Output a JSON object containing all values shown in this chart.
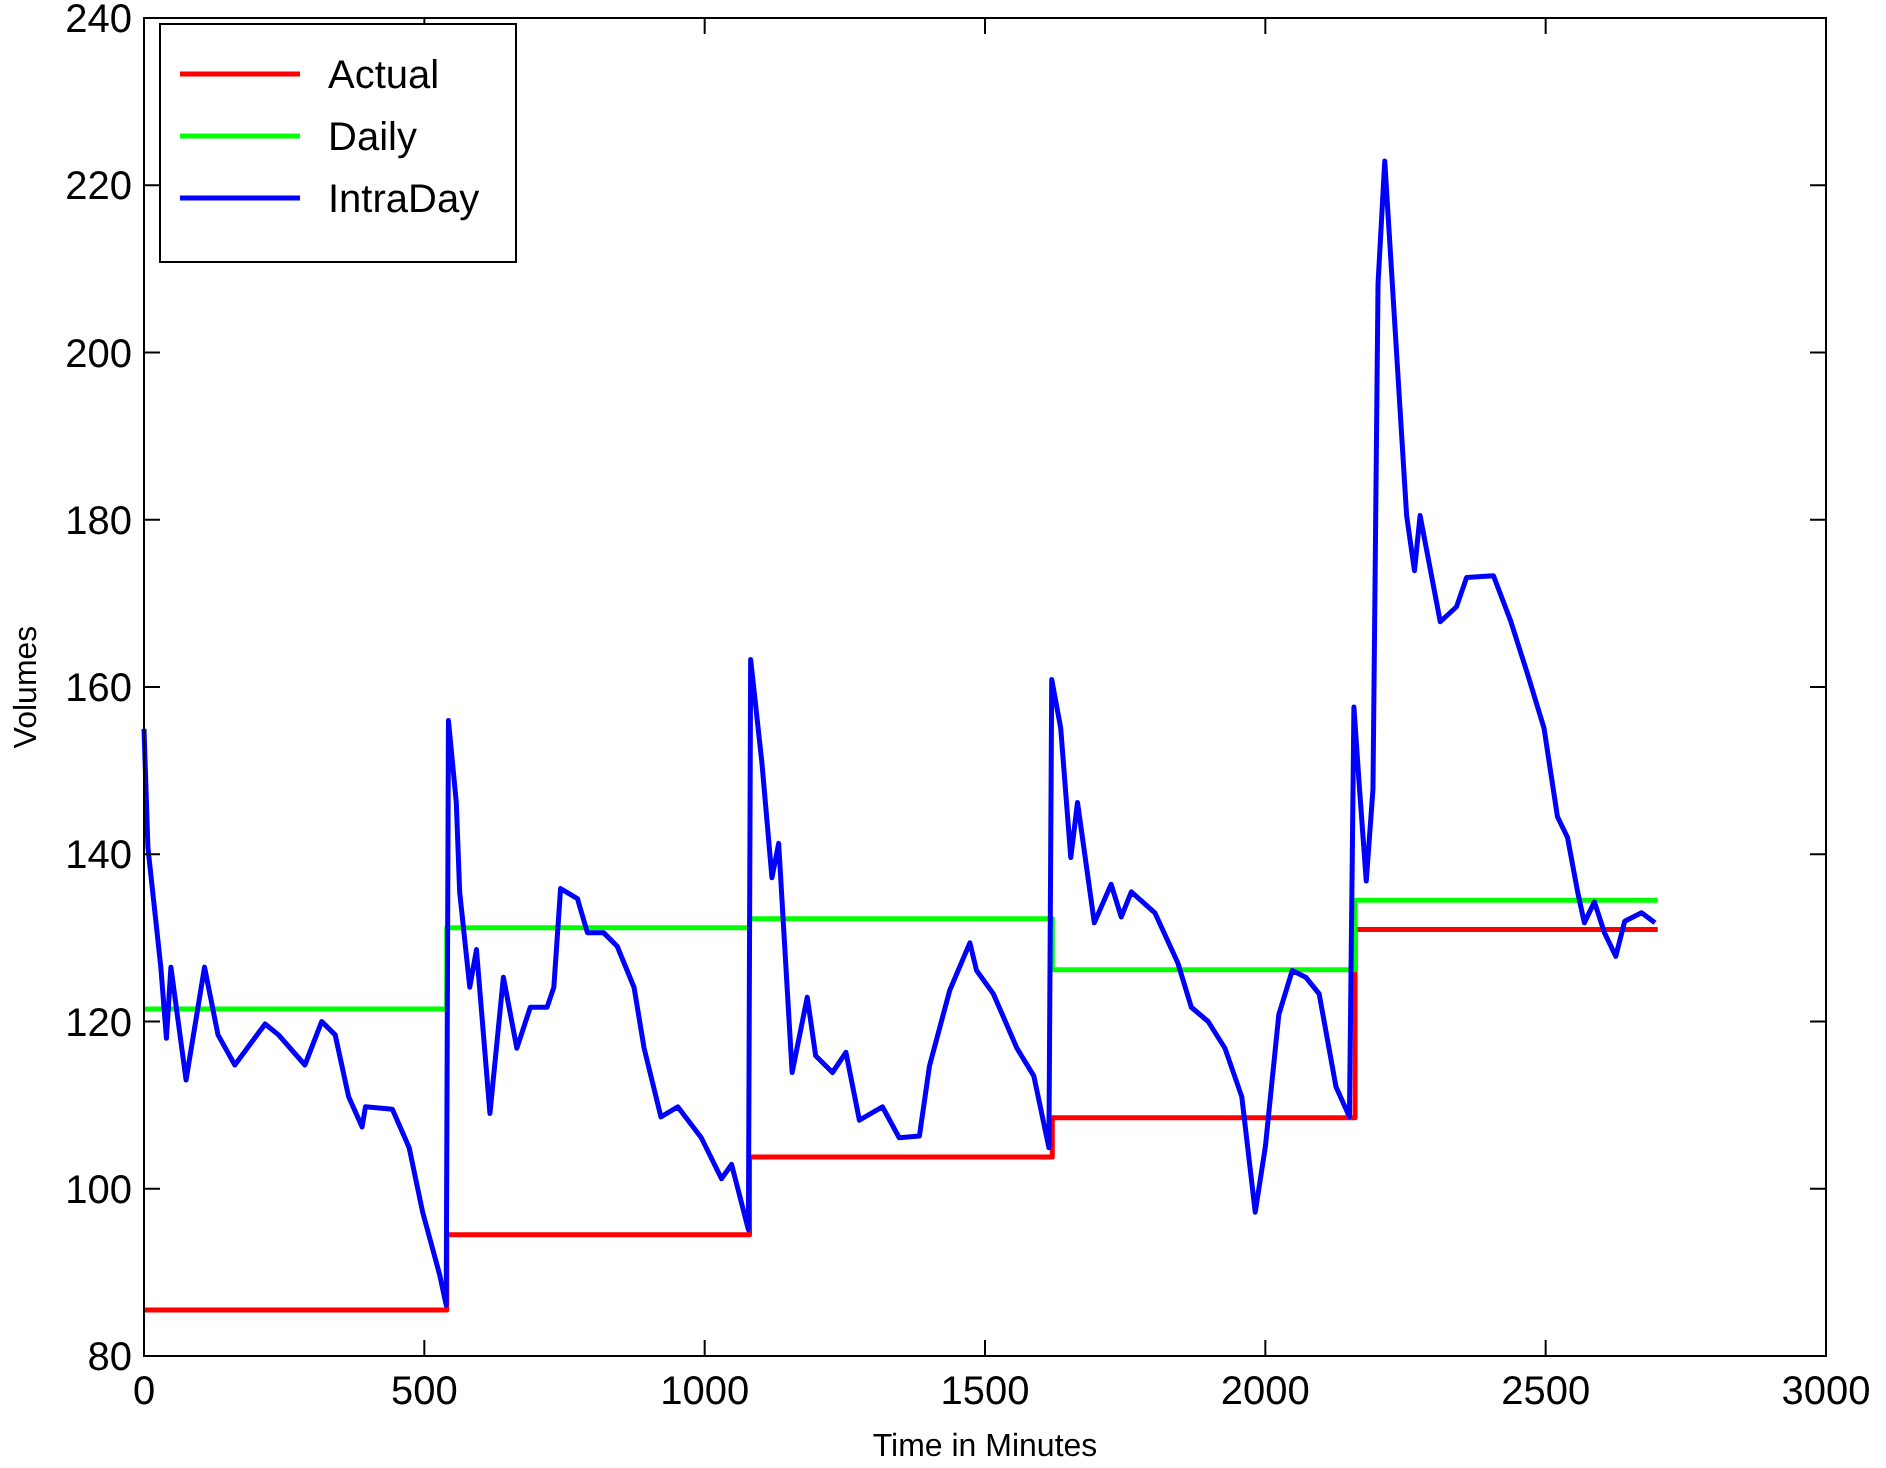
{
  "chart_data": {
    "type": "line",
    "xlabel": "Time in Minutes",
    "ylabel": "Volumes",
    "xlim": [
      0,
      3000
    ],
    "ylim": [
      80,
      240
    ],
    "xticks": [
      0,
      500,
      1000,
      1500,
      2000,
      2500,
      3000
    ],
    "yticks": [
      80,
      100,
      120,
      140,
      160,
      180,
      200,
      220,
      240
    ],
    "legend": "top left",
    "grid": false,
    "series": [
      {
        "name": "Actual",
        "type": "step",
        "color": "#ff0000",
        "x": [
          0,
          540,
          1080,
          1620,
          2160,
          2700
        ],
        "values": [
          85.5,
          94.5,
          103.8,
          108.5,
          131,
          131
        ]
      },
      {
        "name": "Daily",
        "type": "step",
        "color": "#00ff00",
        "x": [
          0,
          540,
          1080,
          1620,
          2160,
          2700
        ],
        "values": [
          121.5,
          131.2,
          132.3,
          126.2,
          134.5,
          134.5
        ]
      },
      {
        "name": "IntraDay",
        "type": "line",
        "color": "#0000ff",
        "x": [
          0,
          7,
          30,
          40,
          48,
          75,
          108,
          132,
          162,
          216,
          240,
          287,
          317,
          341,
          365,
          389,
          395,
          443,
          473,
          497,
          527,
          539,
          543,
          557,
          563,
          581,
          593,
          617,
          641,
          665,
          689,
          719,
          731,
          743,
          773,
          791,
          820,
          844,
          874,
          892,
          922,
          952,
          994,
          1030,
          1048,
          1078,
          1082,
          1102,
          1120,
          1132,
          1156,
          1183,
          1198,
          1228,
          1252,
          1276,
          1317,
          1347,
          1383,
          1401,
          1437,
          1473,
          1485,
          1515,
          1557,
          1587,
          1614,
          1619,
          1635,
          1653,
          1665,
          1695,
          1725,
          1743,
          1761,
          1803,
          1844,
          1868,
          1898,
          1928,
          1958,
          1982,
          2000,
          2024,
          2048,
          2072,
          2096,
          2126,
          2150,
          2158,
          2168,
          2180,
          2192,
          2201,
          2213,
          2222,
          2240,
          2252,
          2266,
          2276,
          2312,
          2341,
          2359,
          2407,
          2437,
          2467,
          2497,
          2521,
          2539,
          2557,
          2569,
          2587,
          2605,
          2625,
          2641,
          2671,
          2695
        ],
        "values": [
          155,
          140.8,
          126.5,
          118,
          126.5,
          113,
          126.5,
          118.4,
          114.8,
          119.7,
          118.4,
          114.8,
          120,
          118.4,
          111,
          107.4,
          109.8,
          109.5,
          104.9,
          97.2,
          89.8,
          86.1,
          156,
          146.2,
          135.5,
          124.1,
          128.6,
          109,
          125.3,
          116.8,
          121.7,
          121.7,
          124.1,
          135.9,
          134.7,
          130.6,
          130.6,
          129,
          124.1,
          116.8,
          108.6,
          109.8,
          106.1,
          101.2,
          102.9,
          95.1,
          163.3,
          151,
          137.2,
          141.3,
          113.9,
          122.9,
          115.9,
          113.9,
          116.3,
          108.2,
          109.8,
          106.1,
          106.3,
          114.7,
          123.7,
          129.4,
          126.1,
          123.3,
          116.8,
          113.5,
          104.9,
          160.9,
          155.1,
          139.6,
          146.2,
          131.8,
          136.4,
          132.5,
          135.5,
          133,
          127,
          121.7,
          120,
          116.8,
          111,
          97.2,
          105,
          120.8,
          126.1,
          125.3,
          123.3,
          112.2,
          108.6,
          157.6,
          147.8,
          136.8,
          147.8,
          208.2,
          222.9,
          213.1,
          193.5,
          180.5,
          173.9,
          180.5,
          167.8,
          169.6,
          173.1,
          173.3,
          168,
          161.7,
          155.1,
          144.5,
          142,
          135.5,
          131.8,
          134.3,
          130.6,
          127.8,
          132,
          133,
          131.8
        ]
      }
    ]
  }
}
